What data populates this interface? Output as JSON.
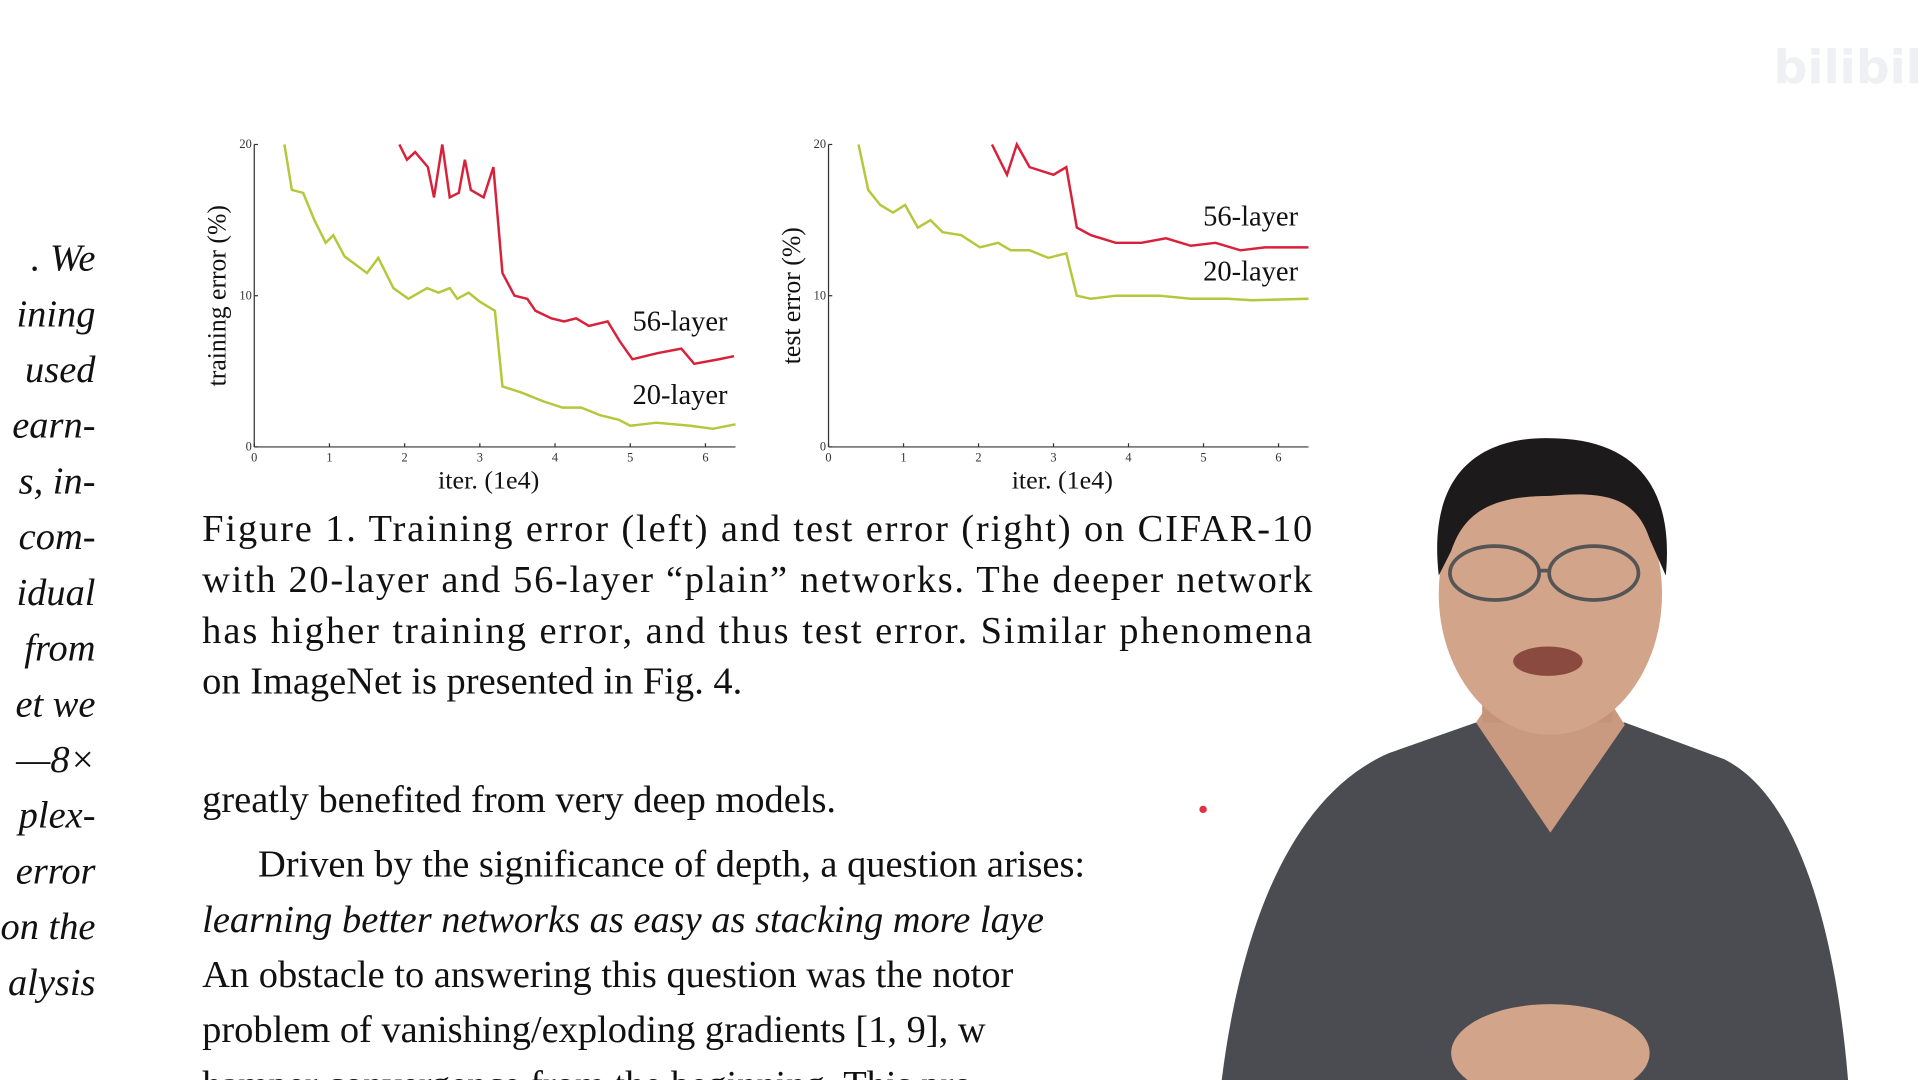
{
  "chart_data": [
    {
      "type": "line",
      "ylabel": "training error (%)",
      "xlabel": "iter. (1e4)",
      "xlim": [
        0,
        6.4
      ],
      "xticks": [
        0,
        1,
        2,
        3,
        4,
        5,
        6
      ],
      "ylim": [
        0,
        20
      ],
      "yticks": [
        0,
        10,
        20
      ],
      "series": [
        {
          "name": "56-layer",
          "color": "#d8213a",
          "x": [
            1.93,
            2.03,
            2.14,
            2.31,
            2.39,
            2.5,
            2.6,
            2.72,
            2.8,
            2.88,
            3.05,
            3.18,
            3.3,
            3.46,
            3.63,
            3.74,
            3.95,
            4.12,
            4.28,
            4.45,
            4.7,
            4.86,
            5.03,
            5.36,
            5.68,
            5.85,
            6.18,
            6.38
          ],
          "values": [
            20,
            19,
            19.5,
            18.5,
            16.5,
            20,
            16.5,
            16.8,
            19,
            17,
            16.5,
            18.5,
            11.5,
            10,
            9.8,
            9,
            8.5,
            8.3,
            8.5,
            8,
            8.3,
            7,
            5.8,
            6.2,
            6.5,
            5.5,
            5.8,
            6
          ]
        },
        {
          "name": "20-layer",
          "color": "#b5c73a",
          "x": [
            0.4,
            0.5,
            0.65,
            0.8,
            0.95,
            1.05,
            1.2,
            1.5,
            1.65,
            1.85,
            2.05,
            2.3,
            2.45,
            2.6,
            2.7,
            2.85,
            3.0,
            3.2,
            3.3,
            3.55,
            3.85,
            4.1,
            4.35,
            4.6,
            4.85,
            5.0,
            5.35,
            5.8,
            6.1,
            6.4
          ],
          "values": [
            20,
            17,
            16.8,
            15,
            13.5,
            14,
            12.6,
            11.5,
            12.5,
            10.5,
            9.8,
            10.5,
            10.2,
            10.5,
            9.8,
            10.2,
            9.6,
            9,
            4,
            3.6,
            3,
            2.6,
            2.6,
            2.1,
            1.8,
            1.4,
            1.6,
            1.4,
            1.2,
            1.5
          ]
        }
      ]
    },
    {
      "type": "line",
      "ylabel": "test error (%)",
      "xlabel": "iter. (1e4)",
      "xlim": [
        0,
        6.4
      ],
      "xticks": [
        0,
        1,
        2,
        3,
        4,
        5,
        6
      ],
      "ylim": [
        0,
        20
      ],
      "yticks": [
        0,
        10,
        20
      ],
      "series": [
        {
          "name": "56-layer",
          "color": "#d8213a",
          "x": [
            2.18,
            2.38,
            2.51,
            2.68,
            3.0,
            3.17,
            3.31,
            3.5,
            3.83,
            4.17,
            4.5,
            4.83,
            5.16,
            5.49,
            5.82,
            6.4
          ],
          "values": [
            20,
            18,
            20,
            18.5,
            18,
            18.5,
            14.5,
            14,
            13.5,
            13.5,
            13.8,
            13.3,
            13.5,
            13,
            13.2,
            13.2
          ]
        },
        {
          "name": "20-layer",
          "color": "#b5c73a",
          "x": [
            0.4,
            0.53,
            0.69,
            0.86,
            1.02,
            1.19,
            1.36,
            1.52,
            1.77,
            2.02,
            2.26,
            2.43,
            2.68,
            2.93,
            3.17,
            3.31,
            3.5,
            3.83,
            4.41,
            4.83,
            5.32,
            5.65,
            6.4
          ],
          "values": [
            20,
            17,
            16,
            15.5,
            16,
            14.5,
            15,
            14.2,
            14,
            13.2,
            13.5,
            13,
            13,
            12.5,
            12.8,
            10,
            9.8,
            10,
            10,
            9.8,
            9.8,
            9.7,
            9.8
          ]
        }
      ]
    }
  ],
  "document": {
    "watermark": "bilibili",
    "left_column": [
      ". We",
      "ining",
      "used",
      "earn-",
      "s, in-",
      "com-",
      "idual",
      "from",
      "et we",
      "—8×",
      "plex-",
      "error",
      "on the",
      "alysis"
    ],
    "caption": [
      "Figure 1. Training error (left) and test error (right) on CIFAR-10",
      "with 20-layer and 56-layer “plain” networks. The deeper network",
      "has higher training error, and thus test error. Similar phenomena",
      "on ImageNet is presented in Fig. 4."
    ],
    "body": [
      "greatly benefited from very deep models.",
      "Driven by the significance of depth, a question arises:",
      "learning better networks as easy as stacking more laye",
      "An obstacle to answering this question was the notor",
      "problem of vanishing/exploding gradients [1, 9], w",
      "hamper convergence from the beginning. This pro"
    ]
  }
}
